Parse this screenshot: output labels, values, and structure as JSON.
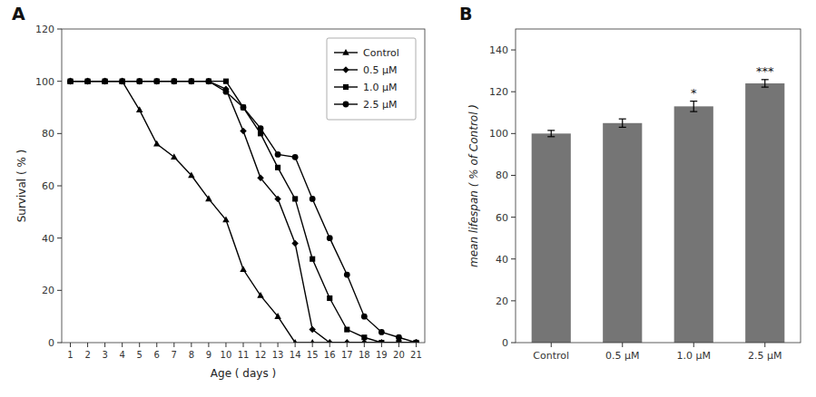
{
  "chart_data": [
    {
      "type": "line",
      "title": "A",
      "xlabel": "Age ( days )",
      "ylabel": "Survival ( % )",
      "x": [
        1,
        2,
        3,
        4,
        5,
        6,
        7,
        8,
        9,
        10,
        11,
        12,
        13,
        14,
        15,
        16,
        17,
        18,
        19,
        20,
        21
      ],
      "series": [
        {
          "name": "Control",
          "color": "#000000",
          "marker": "triangle",
          "values": [
            100,
            100,
            100,
            100,
            89,
            76,
            71,
            64,
            55,
            47,
            28,
            18,
            10,
            0,
            0,
            0,
            0,
            0,
            0,
            0,
            0
          ]
        },
        {
          "name": "0.5 μM",
          "color": "#000000",
          "marker": "diamond",
          "values": [
            100,
            100,
            100,
            100,
            100,
            100,
            100,
            100,
            100,
            97,
            81,
            63,
            55,
            38,
            5,
            0,
            0,
            0,
            0,
            0,
            0
          ]
        },
        {
          "name": "1.0 μM",
          "color": "#000000",
          "marker": "square",
          "values": [
            100,
            100,
            100,
            100,
            100,
            100,
            100,
            100,
            100,
            100,
            90,
            80,
            67,
            55,
            32,
            17,
            5,
            2,
            0,
            0,
            0
          ]
        },
        {
          "name": "2.5 μM",
          "color": "#000000",
          "marker": "circle",
          "values": [
            100,
            100,
            100,
            100,
            100,
            100,
            100,
            100,
            100,
            96,
            90,
            82,
            72,
            71,
            55,
            40,
            26,
            10,
            4,
            2,
            0
          ]
        }
      ],
      "xlim": [
        0.5,
        21.5
      ],
      "ylim": [
        0,
        120
      ],
      "xticks": [
        1,
        2,
        3,
        4,
        5,
        6,
        7,
        8,
        9,
        10,
        11,
        12,
        13,
        14,
        15,
        16,
        17,
        18,
        19,
        20,
        21
      ],
      "yticks": [
        0,
        20,
        40,
        60,
        80,
        100,
        120
      ],
      "grid": false,
      "legend": "upper right"
    },
    {
      "type": "bar",
      "title": "B",
      "ylabel": "mean lifespan ( % of Control )",
      "categories": [
        "Control",
        "0.5 μM",
        "1.0 μM",
        "2.5 μM"
      ],
      "values": [
        100,
        105,
        113,
        124
      ],
      "errors": [
        1.5,
        2.0,
        2.5,
        1.8
      ],
      "color": "#757575",
      "ylim": [
        0,
        150
      ],
      "yticks": [
        0,
        20,
        40,
        60,
        80,
        100,
        120,
        140
      ],
      "annotations": [
        {
          "category": "1.0 μM",
          "text": "*"
        },
        {
          "category": "2.5 μM",
          "text": "***"
        }
      ],
      "grid": false
    }
  ]
}
